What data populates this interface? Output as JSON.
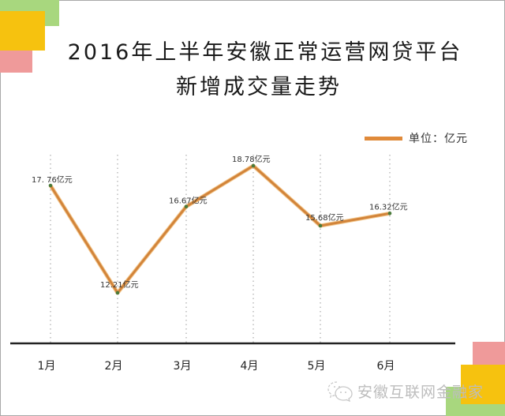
{
  "title": {
    "line1": "2016年上半年安徽正常运营网贷平台",
    "line2": "新增成交量走势"
  },
  "legend": {
    "label": "单位：亿元",
    "color": "#e08a3a"
  },
  "watermark": {
    "text": "安徽互联网金融家",
    "icon": "wechat-icon"
  },
  "colors": {
    "line": "#e08a3a",
    "marker": "#4a7a3a",
    "axis": "#222222",
    "grid": "#888888",
    "block_green": "#a8d77e",
    "block_yellow": "#f6c20f",
    "block_pink": "#ef9a9a"
  },
  "chart_data": {
    "type": "line",
    "title": "2016年上半年安徽正常运营网贷平台新增成交量走势",
    "xlabel": "",
    "ylabel": "",
    "unit": "亿元",
    "categories": [
      "1月",
      "2月",
      "3月",
      "4月",
      "5月",
      "6月"
    ],
    "series": [
      {
        "name": "单位：亿元",
        "values": [
          17.76,
          12.21,
          16.67,
          18.78,
          15.68,
          16.32
        ],
        "labels": [
          "17. 76亿元",
          "12.21亿元",
          "16.67亿元",
          "18.78亿元",
          "15.68亿元",
          "16.32亿元"
        ]
      }
    ],
    "legend_position": "top-right",
    "grid": "vertical dotted lines at each category",
    "y_axis_visible": false
  }
}
